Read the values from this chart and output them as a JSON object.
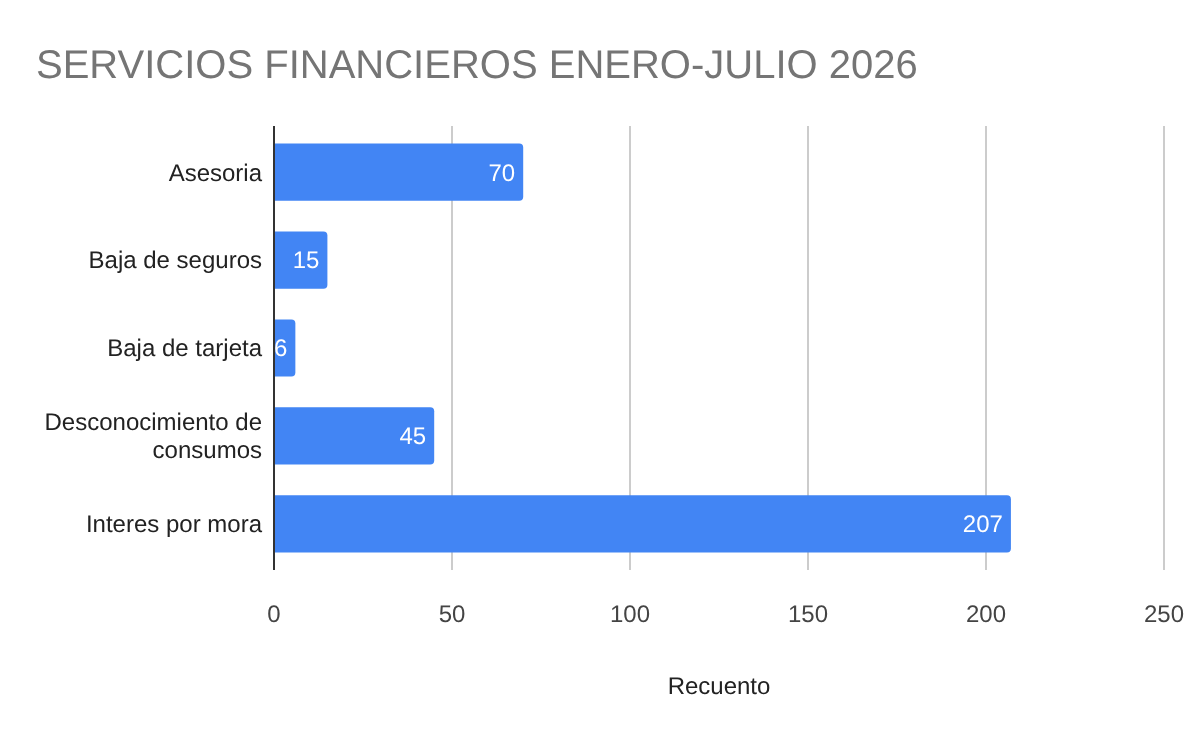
{
  "chart_data": {
    "type": "bar",
    "orientation": "horizontal",
    "title": "SERVICIOS FINANCIEROS ENERO-JULIO 2026",
    "xlabel": "Recuento",
    "categories": [
      "Asesoria",
      "Baja de seguros",
      "Baja de tarjeta",
      "Desconocimiento de consumos",
      "Interes por mora"
    ],
    "values": [
      70,
      15,
      6,
      45,
      207
    ],
    "color": "#4285f4",
    "data_labels": true,
    "grid": "x",
    "xlim": [
      0,
      250
    ],
    "xticks": [
      0,
      50,
      100,
      150,
      200,
      250
    ]
  }
}
